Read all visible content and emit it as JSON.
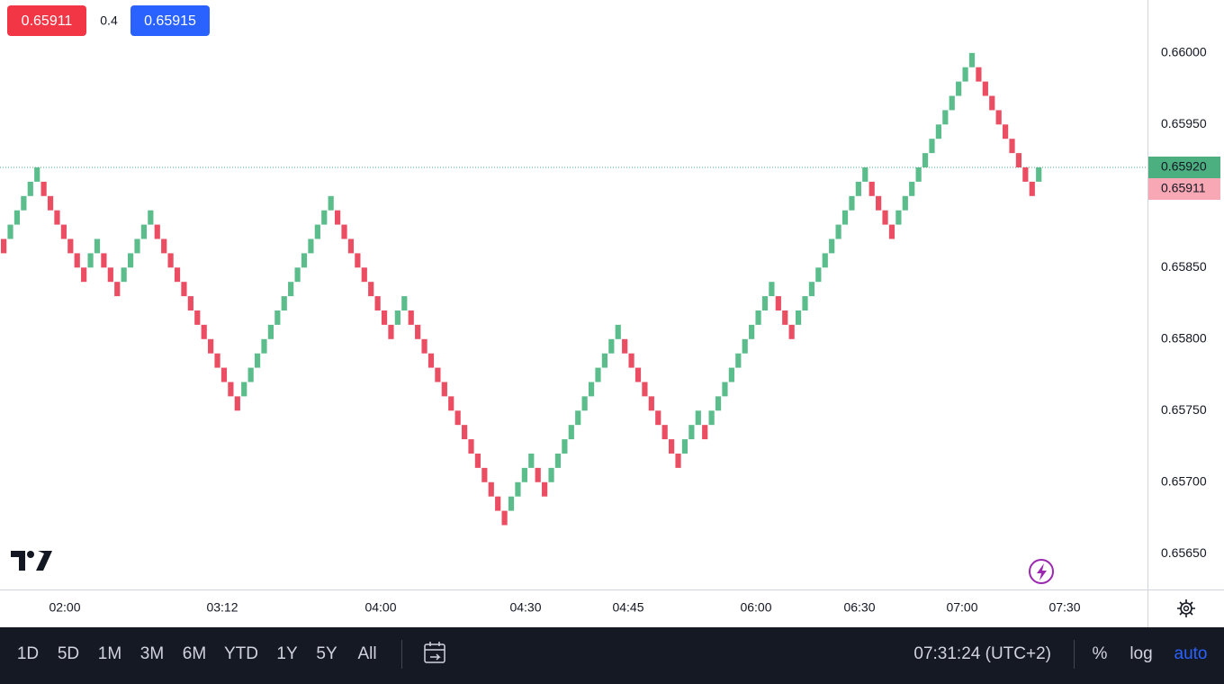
{
  "chart_data": {
    "type": "renko",
    "open": [
      0.6587,
      0.6587,
      0.6588,
      0.6589,
      0.659,
      0.6591,
      0.6591,
      0.659,
      0.6589,
      0.6588,
      0.6587,
      0.6586,
      0.6585,
      0.6585,
      0.6586,
      0.6586,
      0.6585,
      0.6584,
      0.6584,
      0.6585,
      0.6586,
      0.6587,
      0.6588,
      0.6588,
      0.6587,
      0.6586,
      0.6585,
      0.6584,
      0.6583,
      0.6582,
      0.6581,
      0.658,
      0.6579,
      0.6578,
      0.6577,
      0.6576,
      0.6576,
      0.6577,
      0.6578,
      0.6579,
      0.658,
      0.6581,
      0.6582,
      0.6583,
      0.6584,
      0.6585,
      0.6586,
      0.6587,
      0.6588,
      0.6589,
      0.6589,
      0.6588,
      0.6587,
      0.6586,
      0.6585,
      0.6584,
      0.6583,
      0.6582,
      0.6581,
      0.6581,
      0.6582,
      0.6582,
      0.6581,
      0.658,
      0.6579,
      0.6578,
      0.6577,
      0.6576,
      0.6575,
      0.6574,
      0.6573,
      0.6572,
      0.6571,
      0.657,
      0.6569,
      0.6568,
      0.6568,
      0.6569,
      0.657,
      0.6571,
      0.6571,
      0.657,
      0.657,
      0.6571,
      0.6572,
      0.6573,
      0.6574,
      0.6575,
      0.6576,
      0.6577,
      0.6578,
      0.6579,
      0.658,
      0.658,
      0.6579,
      0.6578,
      0.6577,
      0.6576,
      0.6575,
      0.6574,
      0.6573,
      0.6572,
      0.6572,
      0.6573,
      0.6574,
      0.6574,
      0.6574,
      0.6575,
      0.6576,
      0.6577,
      0.6578,
      0.6579,
      0.658,
      0.6581,
      0.6582,
      0.6583,
      0.6583,
      0.6582,
      0.6581,
      0.6581,
      0.6582,
      0.6583,
      0.6584,
      0.6585,
      0.6586,
      0.6587,
      0.6588,
      0.6589,
      0.659,
      0.6591,
      0.6591,
      0.659,
      0.6589,
      0.6588,
      0.6588,
      0.6589,
      0.659,
      0.6591,
      0.6592,
      0.6593,
      0.6594,
      0.6595,
      0.6596,
      0.6597,
      0.6598,
      0.6599,
      0.6599,
      0.6598,
      0.6597,
      0.6596,
      0.6595,
      0.6594,
      0.6593,
      0.6592,
      0.6591,
      0.6591
    ],
    "close": [
      0.6586,
      0.6588,
      0.6589,
      0.659,
      0.6591,
      0.6592,
      0.659,
      0.6589,
      0.6588,
      0.6587,
      0.6586,
      0.6585,
      0.6584,
      0.6586,
      0.6587,
      0.6585,
      0.6584,
      0.6583,
      0.6585,
      0.6586,
      0.6587,
      0.6588,
      0.6589,
      0.6587,
      0.6586,
      0.6585,
      0.6584,
      0.6583,
      0.6582,
      0.6581,
      0.658,
      0.6579,
      0.6578,
      0.6577,
      0.6576,
      0.6575,
      0.6577,
      0.6578,
      0.6579,
      0.658,
      0.6581,
      0.6582,
      0.6583,
      0.6584,
      0.6585,
      0.6586,
      0.6587,
      0.6588,
      0.6589,
      0.659,
      0.6588,
      0.6587,
      0.6586,
      0.6585,
      0.6584,
      0.6583,
      0.6582,
      0.6581,
      0.658,
      0.6582,
      0.6583,
      0.6581,
      0.658,
      0.6579,
      0.6578,
      0.6577,
      0.6576,
      0.6575,
      0.6574,
      0.6573,
      0.6572,
      0.6571,
      0.657,
      0.6569,
      0.6568,
      0.6567,
      0.6569,
      0.657,
      0.6571,
      0.6572,
      0.657,
      0.6569,
      0.6571,
      0.6572,
      0.6573,
      0.6574,
      0.6575,
      0.6576,
      0.6577,
      0.6578,
      0.6579,
      0.658,
      0.6581,
      0.6579,
      0.6578,
      0.6577,
      0.6576,
      0.6575,
      0.6574,
      0.6573,
      0.6572,
      0.6571,
      0.6573,
      0.6574,
      0.6575,
      0.6573,
      0.6575,
      0.6576,
      0.6577,
      0.6578,
      0.6579,
      0.658,
      0.6581,
      0.6582,
      0.6583,
      0.6584,
      0.6582,
      0.6581,
      0.658,
      0.6582,
      0.6583,
      0.6584,
      0.6585,
      0.6586,
      0.6587,
      0.6588,
      0.6589,
      0.659,
      0.6591,
      0.6592,
      0.659,
      0.6589,
      0.6588,
      0.6587,
      0.6589,
      0.659,
      0.6591,
      0.6592,
      0.6593,
      0.6594,
      0.6595,
      0.6596,
      0.6597,
      0.6598,
      0.6599,
      0.66,
      0.6598,
      0.6597,
      0.6596,
      0.6595,
      0.6594,
      0.6593,
      0.6592,
      0.6591,
      0.659,
      0.6592
    ],
    "up_color": "#5bbd8c",
    "down_color": "#eb4d63",
    "ylim": [
      0.65625,
      0.66037
    ],
    "yticks": [
      {
        "value": 0.6565,
        "label": "0.65650"
      },
      {
        "value": 0.657,
        "label": "0.65700"
      },
      {
        "value": 0.6575,
        "label": "0.65750"
      },
      {
        "value": 0.658,
        "label": "0.65800"
      },
      {
        "value": 0.6585,
        "label": "0.65850"
      },
      {
        "value": 0.659,
        "label": "0.65900"
      },
      {
        "value": 0.6595,
        "label": "0.65950"
      },
      {
        "value": 0.66,
        "label": "0.66000"
      }
    ],
    "grid": false,
    "x_labels": [
      "02:00",
      "03:12",
      "04:00",
      "04:30",
      "04:45",
      "06:00",
      "06:30",
      "07:00",
      "07:30"
    ],
    "price_labels": [
      {
        "value": 0.6592,
        "label": "0.65920",
        "color": "#4caf80"
      },
      {
        "value": 0.65911,
        "label": "0.65911",
        "color": "#f7a8b4"
      }
    ]
  },
  "legend": {
    "sell": "0.65911",
    "spread": "0.4",
    "buy": "0.65915"
  },
  "toolbar": {
    "ranges": [
      "1D",
      "5D",
      "1M",
      "3M",
      "6M",
      "YTD",
      "1Y",
      "5Y",
      "All"
    ],
    "clock": "07:31:24 (UTC+2)",
    "percent": "%",
    "log": "log",
    "auto": "auto"
  }
}
